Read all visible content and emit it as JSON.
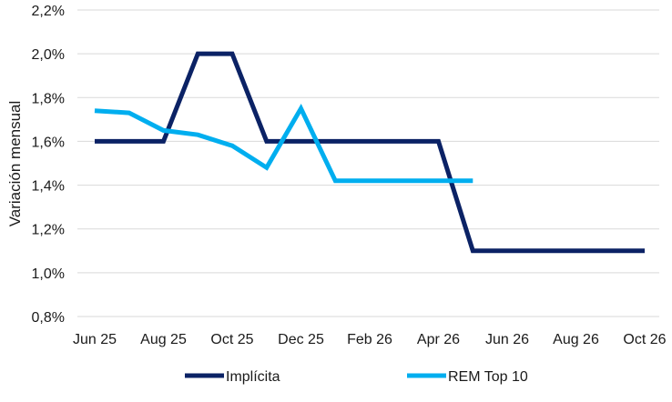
{
  "chart_data": {
    "type": "line",
    "ylabel": "Variación mensual",
    "ylim": [
      0.8,
      2.2
    ],
    "y_ticks": [
      "0,8%",
      "1,0%",
      "1,2%",
      "1,4%",
      "1,6%",
      "1,8%",
      "2,0%",
      "2,2%"
    ],
    "x_tick_labels": [
      "Jun 25",
      "Aug 25",
      "Oct 25",
      "Dec 25",
      "Feb 26",
      "Apr 26",
      "Jun 26",
      "Aug 26",
      "Oct 26"
    ],
    "categories": [
      "Jun 25",
      "Jul 25",
      "Aug 25",
      "Sep 25",
      "Oct 25",
      "Nov 25",
      "Dec 25",
      "Jan 26",
      "Feb 26",
      "Mar 26",
      "Apr 26",
      "May 26",
      "Jun 26",
      "Jul 26",
      "Aug 26",
      "Sep 26",
      "Oct 26"
    ],
    "grid": true,
    "legend_position": "bottom",
    "series": [
      {
        "name": "Implícita",
        "color": "#0b2265",
        "values": [
          1.6,
          1.6,
          1.6,
          2.0,
          2.0,
          1.6,
          1.6,
          1.6,
          1.6,
          1.6,
          1.6,
          1.1,
          1.1,
          1.1,
          1.1,
          1.1,
          1.1
        ]
      },
      {
        "name": "REM Top 10",
        "color": "#00aeef",
        "values": [
          1.74,
          1.73,
          1.65,
          1.63,
          1.58,
          1.48,
          1.75,
          1.42,
          1.42,
          1.42,
          1.42,
          1.42,
          null,
          null,
          null,
          null,
          null
        ]
      }
    ]
  }
}
